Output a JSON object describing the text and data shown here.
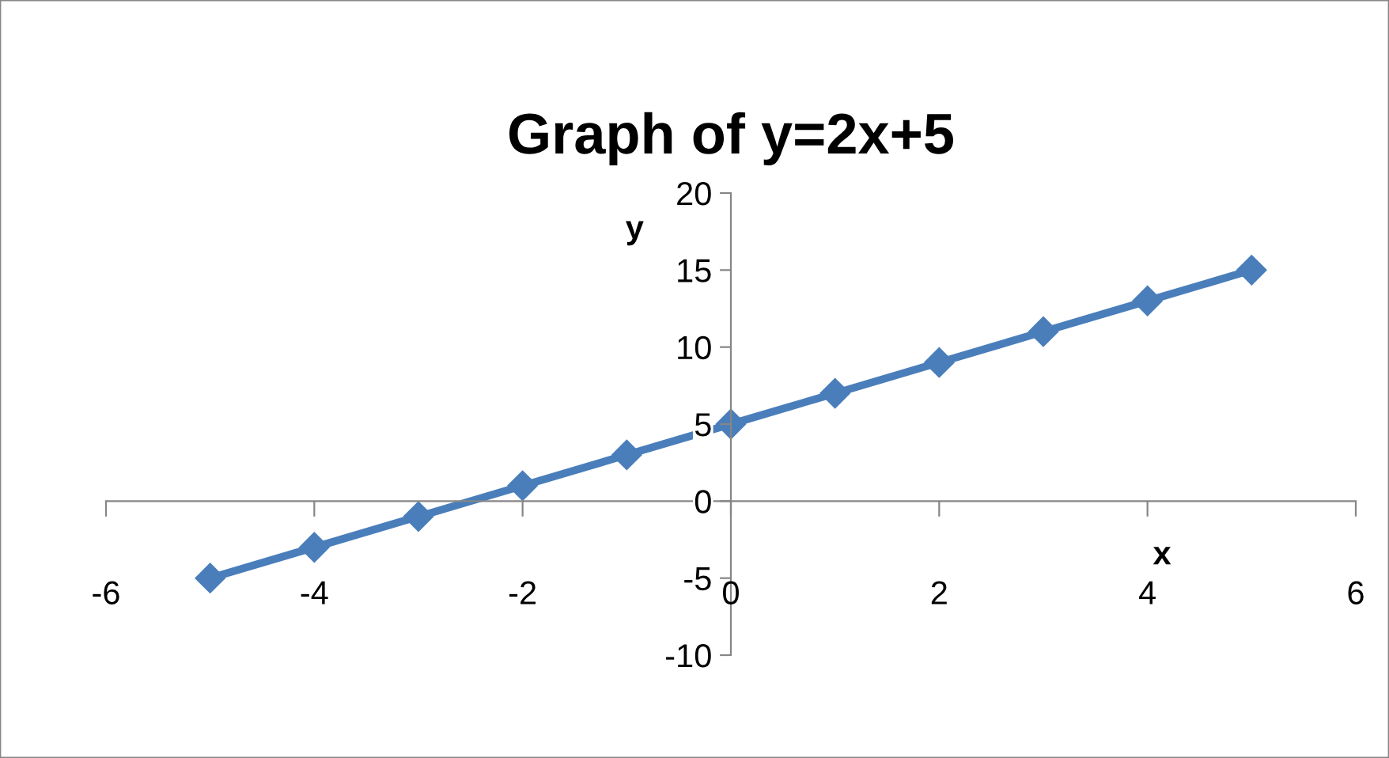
{
  "chart_data": {
    "type": "line",
    "title": "Graph of y=2x+5",
    "xlabel": "x",
    "ylabel": "y",
    "x": [
      -5,
      -4,
      -3,
      -2,
      -1,
      0,
      1,
      2,
      3,
      4,
      5
    ],
    "series": [
      {
        "color": "#4a7ebb",
        "values": [
          -5,
          -3,
          -1,
          1,
          3,
          5,
          7,
          9,
          11,
          13,
          15
        ]
      }
    ],
    "xlim": [
      -6,
      6
    ],
    "xticks": [
      -6,
      -4,
      -2,
      0,
      2,
      4,
      6
    ],
    "ylim": [
      -10,
      20
    ],
    "yticks": [
      -10,
      -5,
      0,
      5,
      10,
      15,
      20
    ],
    "grid": false,
    "legend": false,
    "marker": "diamond",
    "line_style": "solid"
  }
}
